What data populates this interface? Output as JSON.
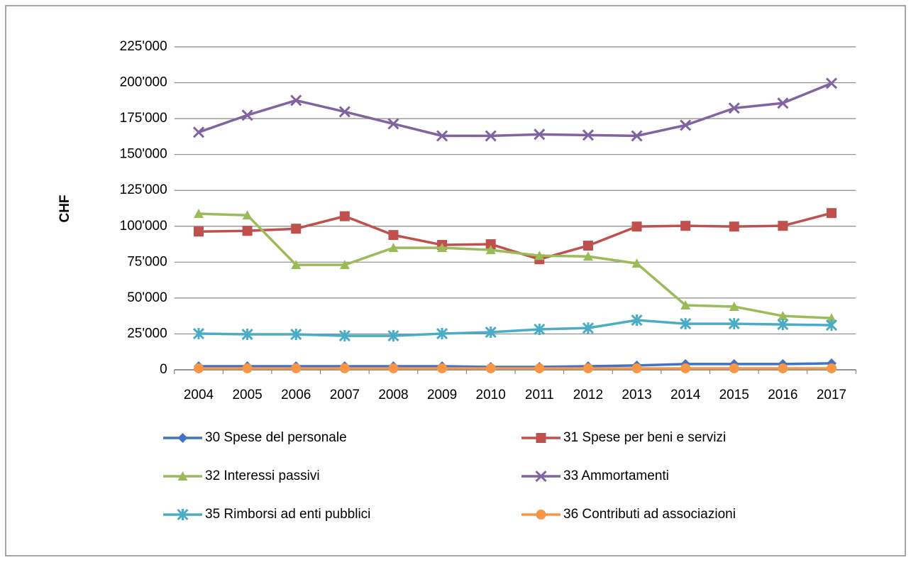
{
  "chart_data": {
    "type": "line",
    "y_label": "CHF",
    "categories": [
      "2004",
      "2005",
      "2006",
      "2007",
      "2008",
      "2009",
      "2010",
      "2011",
      "2012",
      "2013",
      "2014",
      "2015",
      "2016",
      "2017"
    ],
    "ylim": [
      0,
      225000
    ],
    "yticks": [
      0,
      {
        "value": 25000,
        "label": "25'000"
      },
      {
        "value": 50000,
        "label": "50'000"
      },
      {
        "value": 75000,
        "label": "75'000"
      },
      {
        "value": 100000,
        "label": "100'000"
      },
      {
        "value": 125000,
        "label": "125'000"
      },
      {
        "value": 150000,
        "label": "150'000"
      },
      {
        "value": 175000,
        "label": "175'000"
      },
      {
        "value": 200000,
        "label": "200'000"
      },
      {
        "value": 225000,
        "label": "225'000"
      }
    ],
    "grid": true,
    "series": [
      {
        "name": "30 Spese del personale",
        "color": "#4472c4",
        "marker": "diamond",
        "values": [
          2500,
          2500,
          2500,
          2500,
          2500,
          2500,
          2000,
          2000,
          2500,
          3000,
          4000,
          4000,
          4000,
          4500
        ]
      },
      {
        "name": "31 Spese per beni e servizi",
        "color": "#c0504d",
        "marker": "square",
        "values": [
          96300,
          96800,
          98300,
          107000,
          93900,
          87000,
          87500,
          77000,
          86500,
          99800,
          100300,
          99800,
          100300,
          109200
        ]
      },
      {
        "name": "32 Interessi passivi",
        "color": "#9bbb59",
        "marker": "triangle",
        "values": [
          108700,
          107700,
          73100,
          73100,
          85000,
          85000,
          83500,
          79500,
          79000,
          74100,
          45000,
          44000,
          37500,
          36000
        ]
      },
      {
        "name": "33 Ammortamenti",
        "color": "#8064a2",
        "marker": "x",
        "values": [
          165500,
          177400,
          187700,
          179800,
          171400,
          163000,
          163000,
          164000,
          163500,
          163000,
          170400,
          182300,
          185800,
          199600
        ]
      },
      {
        "name": "35 Rimborsi ad enti pubblici",
        "color": "#4bacc6",
        "marker": "star",
        "values": [
          25200,
          24700,
          24700,
          23700,
          23700,
          25200,
          26200,
          28200,
          29100,
          34600,
          32100,
          32100,
          31600,
          31100
        ]
      },
      {
        "name": "36 Contributi ad associazioni",
        "color": "#f79646",
        "marker": "circle",
        "values": [
          1000,
          1000,
          1000,
          1000,
          1000,
          1000,
          1000,
          1000,
          1000,
          1000,
          1000,
          1000,
          1000,
          1000
        ]
      }
    ]
  }
}
